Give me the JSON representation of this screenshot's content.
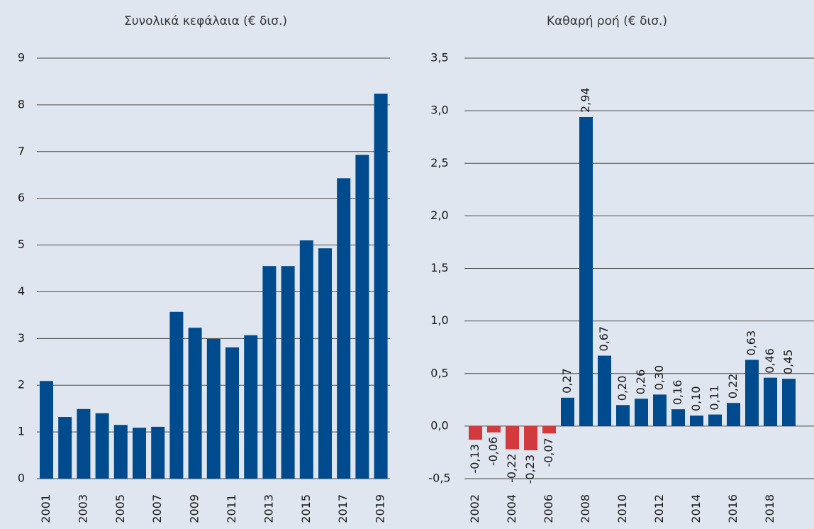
{
  "chart_data": [
    {
      "type": "bar",
      "title": "Συνολικά κεφάλαια (€ δισ.)",
      "categories": [
        "2001",
        null,
        "2003",
        null,
        "2005",
        null,
        "2007",
        null,
        "2009",
        null,
        "2011",
        null,
        "2013",
        null,
        "2015",
        null,
        "2017",
        null,
        "2019"
      ],
      "values": [
        2.09,
        1.32,
        1.49,
        1.4,
        1.15,
        1.09,
        1.11,
        3.57,
        3.23,
        2.99,
        2.81,
        3.07,
        4.55,
        4.55,
        5.1,
        4.93,
        6.43,
        6.93,
        8.24
      ],
      "color": "#004b8d",
      "ylim": [
        0,
        9
      ],
      "yticks": [
        0,
        1,
        2,
        3,
        4,
        5,
        6,
        7,
        8,
        9
      ],
      "grid": true
    },
    {
      "type": "bar",
      "title": "Καθαρή ροή (€ δισ.)",
      "categories": [
        "2002",
        null,
        "2004",
        null,
        "2006",
        null,
        "2008",
        null,
        "2010",
        null,
        "2012",
        null,
        "2014",
        null,
        "2016",
        null,
        "2018",
        null
      ],
      "values": [
        -0.13,
        -0.06,
        -0.22,
        -0.23,
        -0.07,
        0.27,
        2.94,
        0.67,
        0.2,
        0.26,
        0.3,
        0.16,
        0.1,
        0.11,
        0.22,
        0.63,
        0.46,
        0.45
      ],
      "value_labels": [
        "-0,13",
        "-0,06",
        "-0,22",
        "-0,23",
        "-0,07",
        "0,27",
        "2,94",
        "0,67",
        "0,20",
        "0,26",
        "0,30",
        "0,16",
        "0,10",
        "0,11",
        "0,22",
        "0,63",
        "0,46",
        "0,45"
      ],
      "color": "#004b8d",
      "negative_color": "#d13b3e",
      "ylim": [
        -0.5,
        3.5
      ],
      "yticks": [
        {
          "value": -0.5,
          "label": "-0,5"
        },
        {
          "value": 0,
          "label": "0,0"
        },
        {
          "value": 0.5,
          "label": "0,5"
        },
        {
          "value": 1,
          "label": "1,0"
        },
        {
          "value": 1.5,
          "label": "1,5"
        },
        {
          "value": 2,
          "label": "2,0"
        },
        {
          "value": 2.5,
          "label": "2,5"
        },
        {
          "value": 3,
          "label": "3,0"
        },
        {
          "value": 3.5,
          "label": "3,5"
        }
      ],
      "grid": true
    }
  ]
}
